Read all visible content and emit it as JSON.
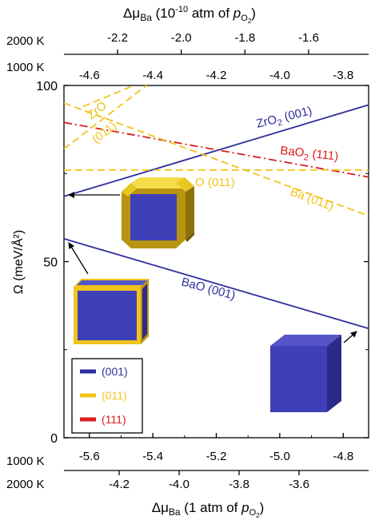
{
  "chart_data": {
    "type": "line",
    "ylabel": "Ω (meV/Å²)",
    "ylim": [
      0,
      100
    ],
    "yticks": [
      0,
      50,
      100
    ],
    "xlim": [
      -5.68,
      -4.72
    ],
    "axes": {
      "top_title_prefix": "Δμ",
      "top_title_sub": "Ba",
      "top_title_rest": " (10",
      "top_title_exp": "-10",
      "top_title_tail": " atm of ",
      "bottom_title_prefix": "Δμ",
      "bottom_title_sub": "Ba",
      "bottom_title_rest": " (1 atm of ",
      "p_symbol": "p",
      "p_sub": "O",
      "p_subsub": "2",
      "close_paren": ")",
      "top_2000K_label": "2000 K",
      "top_1000K_label": "1000 K",
      "bottom_1000K_label": "1000 K",
      "bottom_2000K_label": "2000 K",
      "top_2000K_ticks": [
        "-2.2",
        "-2.0",
        "-1.8",
        "-1.6"
      ],
      "top_1000K_ticks": [
        "-4.6",
        "-4.4",
        "-4.2",
        "-4.0",
        "-3.8"
      ],
      "bottom_1000K_ticks": [
        "-5.6",
        "-5.4",
        "-5.2",
        "-5.0",
        "-4.8"
      ],
      "bottom_2000K_ticks": [
        "-4.2",
        "-4.0",
        "-3.8",
        "-3.6"
      ],
      "main_x_values": [
        -5.6,
        -5.4,
        -5.2,
        -5.0,
        -4.8
      ],
      "top_2000K_values": [
        -2.2,
        -2.0,
        -1.8,
        -1.6
      ],
      "bottom_2000K_values": [
        -4.2,
        -4.0,
        -3.8,
        -3.6
      ]
    },
    "series": [
      {
        "name": "ZrO2 (001)",
        "color": "#2e2e9e",
        "dash": "solid",
        "x": [
          -5.68,
          -4.72
        ],
        "y": [
          68.5,
          94.5
        ]
      },
      {
        "name": "BaO (001)",
        "color": "#2e2e9e",
        "dash": "solid",
        "x": [
          -5.68,
          -4.72
        ],
        "y": [
          56.5,
          31
        ]
      },
      {
        "name": "BaO2 (111)",
        "color": "#d81e1e",
        "dash": "dashdot",
        "x": [
          -5.68,
          -4.72
        ],
        "y": [
          89.5,
          74
        ]
      },
      {
        "name": "O (011)",
        "color": "#f0c419",
        "dash": "dash",
        "x": [
          -5.68,
          -4.72
        ],
        "y": [
          76,
          76
        ]
      },
      {
        "name": "Ba (011)",
        "color": "#f0c419",
        "dash": "dash",
        "x": [
          -5.68,
          -4.72
        ],
        "y": [
          95,
          63
        ]
      },
      {
        "name": "ZrO (011)",
        "color": "#f0c419",
        "dash": "dash",
        "x": [
          -5.68,
          -5.42
        ],
        "y": [
          82,
          100
        ]
      },
      {
        "name": "ZrO (011) upper",
        "color": "#f0c419",
        "dash": "dash",
        "x": [
          -5.62,
          -5.46
        ],
        "y": [
          94,
          100
        ]
      }
    ],
    "labels": {
      "zro2_main": "ZrO",
      "zro2_sub": "2",
      "zro2_tail": " (001)",
      "bao2_main": "BaO",
      "bao2_sub": "2",
      "bao2_tail": " (111)",
      "o011": "O (011)",
      "ba011": "Ba (011)",
      "zro_top": "ZrO",
      "zro_bottom": "(011)",
      "bao001": "BaO (001)"
    },
    "legend": {
      "position": "bottom-left",
      "entries": [
        {
          "label": "(001)",
          "color": "#2e2e9e"
        },
        {
          "label": "(011)",
          "color": "#f0c419"
        },
        {
          "label": "(111)",
          "color": "#d81e1e"
        }
      ]
    }
  },
  "colors": {
    "blue": "#2e2e9e",
    "cube_front": "#3f3fb8",
    "cube_top": "#5555c8",
    "cube_side": "#2a2a8a",
    "yellow": "#f0c419",
    "yellow_dark": "#b89410",
    "red": "#d81e1e"
  },
  "icons": [
    "truncated-cube-crystal-icon",
    "yellow-edged-cube-crystal-icon",
    "blue-cube-crystal-icon",
    "arrow-icon"
  ]
}
